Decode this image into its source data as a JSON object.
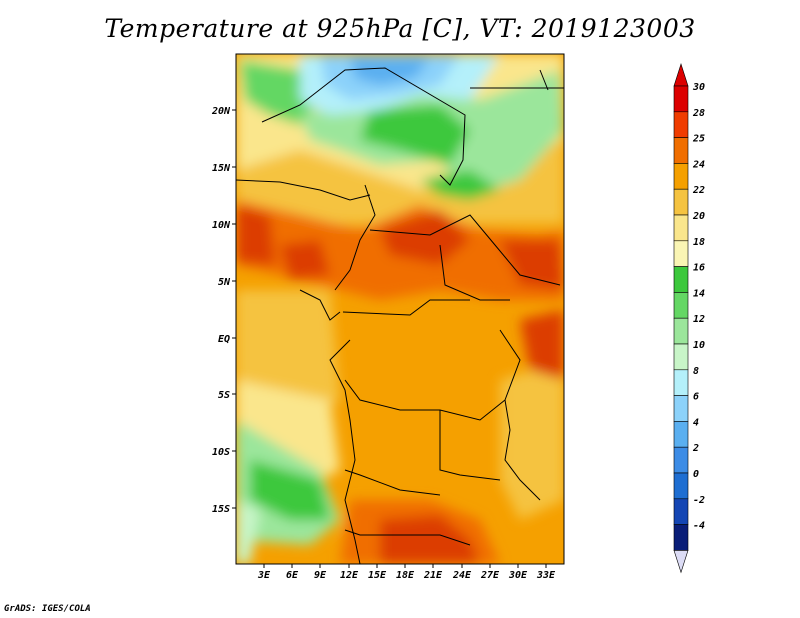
{
  "title": "Temperature at 925hPa [C], VT: 2019123003",
  "footer": "GrADS: IGES/COLA",
  "map": {
    "lat_labels": [
      "20N",
      "15N",
      "10N",
      "5N",
      "EQ",
      "5S",
      "10S",
      "15S"
    ],
    "lon_labels": [
      "3E",
      "6E",
      "9E",
      "12E",
      "15E",
      "18E",
      "21E",
      "24E",
      "27E",
      "30E",
      "33E"
    ]
  },
  "colorbar": {
    "levels": [
      "30",
      "28",
      "25",
      "24",
      "22",
      "20",
      "18",
      "16",
      "14",
      "12",
      "10",
      "8",
      "6",
      "4",
      "2",
      "0",
      "-2",
      "-4"
    ],
    "colors": [
      "#dc0000",
      "#f03c00",
      "#f06e00",
      "#f5a000",
      "#f5c341",
      "#fae68c",
      "#faf5b4",
      "#3cc83c",
      "#64d764",
      "#9be69b",
      "#c8f5c8",
      "#b4f0fa",
      "#8cd2fa",
      "#5aaff0",
      "#3c8ce6",
      "#1e6ed2",
      "#1446b4",
      "#0a1e78"
    ],
    "over_color": "#dc0000",
    "under_color": "#dcdcf5"
  },
  "colors": {
    "hot": "#dc3c00",
    "orange": "#f06e00",
    "warm": "#f5a000",
    "mid": "#f5c341",
    "light": "#fae68c",
    "green": "#3cc83c",
    "lightgreen": "#9be69b",
    "blue": "#8cd2fa"
  }
}
